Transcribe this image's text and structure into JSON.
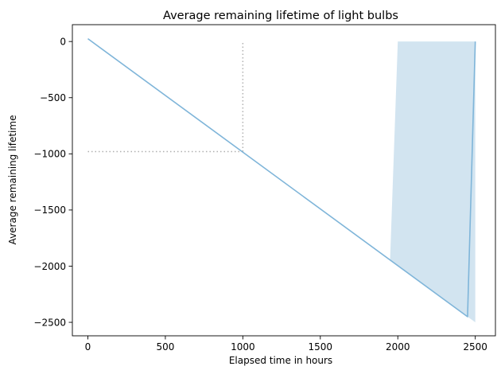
{
  "chart_data": {
    "type": "line",
    "title": "Average remaining lifetime of light bulbs",
    "xlabel": "Elapsed time in hours",
    "ylabel": "Average remaining lifetime",
    "xlim": [
      -100,
      2630
    ],
    "ylim": [
      -2620,
      150
    ],
    "xticks": [
      0,
      500,
      1000,
      1500,
      2000,
      2500
    ],
    "yticks": [
      0,
      -500,
      -1000,
      -1500,
      -2000,
      -2500
    ],
    "grid": false,
    "series": [
      {
        "values": [
          [
            0,
            25
          ],
          [
            2450,
            -2450
          ],
          [
            2500,
            0
          ]
        ],
        "color": "#7fb5d9"
      }
    ],
    "band": {
      "upper": [
        [
          1950,
          -1950
        ],
        [
          2000,
          0
        ],
        [
          2500,
          0
        ]
      ],
      "lower": [
        [
          1950,
          -1950
        ],
        [
          2500,
          -2500
        ]
      ],
      "color": "#1f77b4",
      "opacity": 0.2
    },
    "reference_lines": {
      "horizontal": {
        "y": -980,
        "x_from": 0,
        "x_to": 1000
      },
      "vertical": {
        "x": 1000,
        "y_from": -980,
        "y_to": 0
      },
      "color": "#b0b0b0",
      "style": "dotted"
    }
  }
}
